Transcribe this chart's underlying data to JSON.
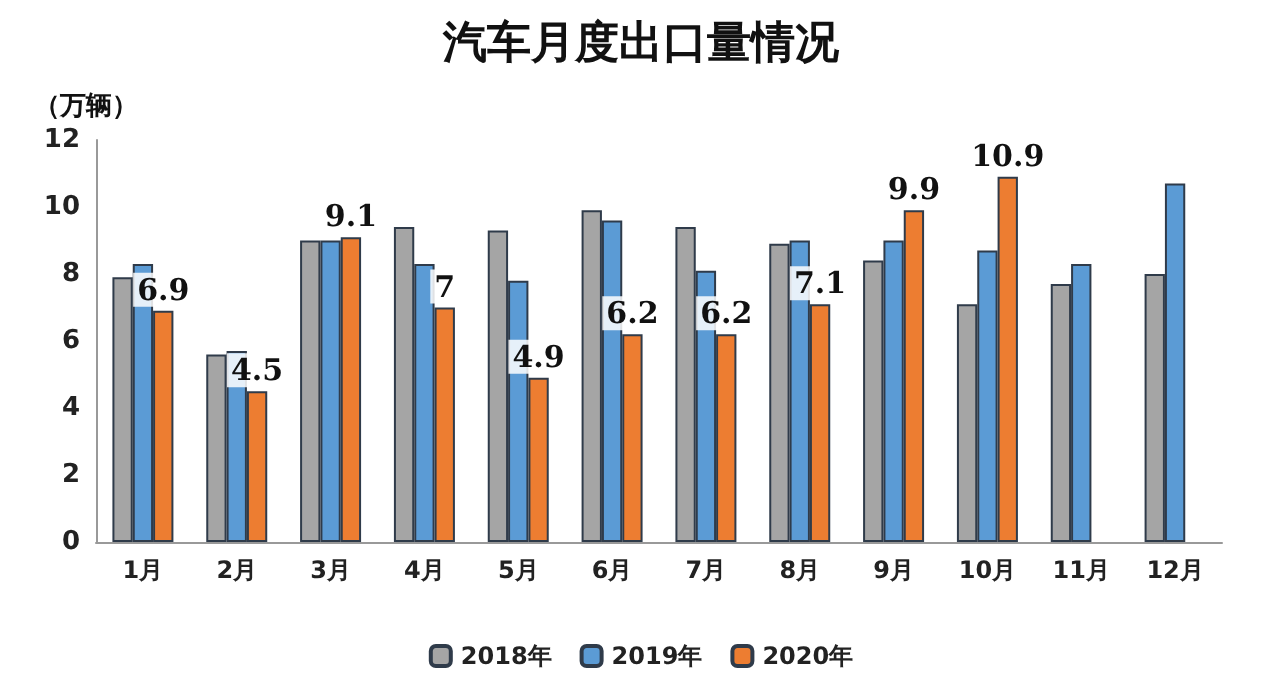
{
  "chart_data": {
    "type": "bar",
    "title": "汽车月度出口量情况",
    "ylabel": "（万辆）",
    "categories": [
      "1月",
      "2月",
      "3月",
      "4月",
      "5月",
      "6月",
      "7月",
      "8月",
      "9月",
      "10月",
      "11月",
      "12月"
    ],
    "series": [
      {
        "name": "2018年",
        "color": "#a5a5a5",
        "values": [
          7.9,
          5.6,
          9.0,
          9.4,
          9.3,
          9.9,
          9.4,
          8.9,
          8.4,
          7.1,
          7.7,
          8.0
        ]
      },
      {
        "name": "2019年",
        "color": "#5b9bd5",
        "values": [
          8.3,
          5.7,
          9.0,
          8.3,
          7.8,
          9.6,
          8.1,
          9.0,
          9.0,
          8.7,
          8.3,
          10.7
        ]
      },
      {
        "name": "2020年",
        "color": "#ed7d31",
        "values": [
          6.9,
          4.5,
          9.1,
          7,
          4.9,
          6.2,
          6.2,
          7.1,
          9.9,
          10.9,
          null,
          null
        ],
        "value_labels": [
          "6.9",
          "4.5",
          "9.1",
          "7",
          "4.9",
          "6.2",
          "6.2",
          "7.1",
          "9.9",
          "10.9",
          null,
          null
        ]
      }
    ],
    "ylim": [
      0,
      12
    ],
    "yticks": [
      0,
      2,
      4,
      6,
      8,
      10,
      12
    ],
    "grid": false,
    "legend": "bottom"
  }
}
